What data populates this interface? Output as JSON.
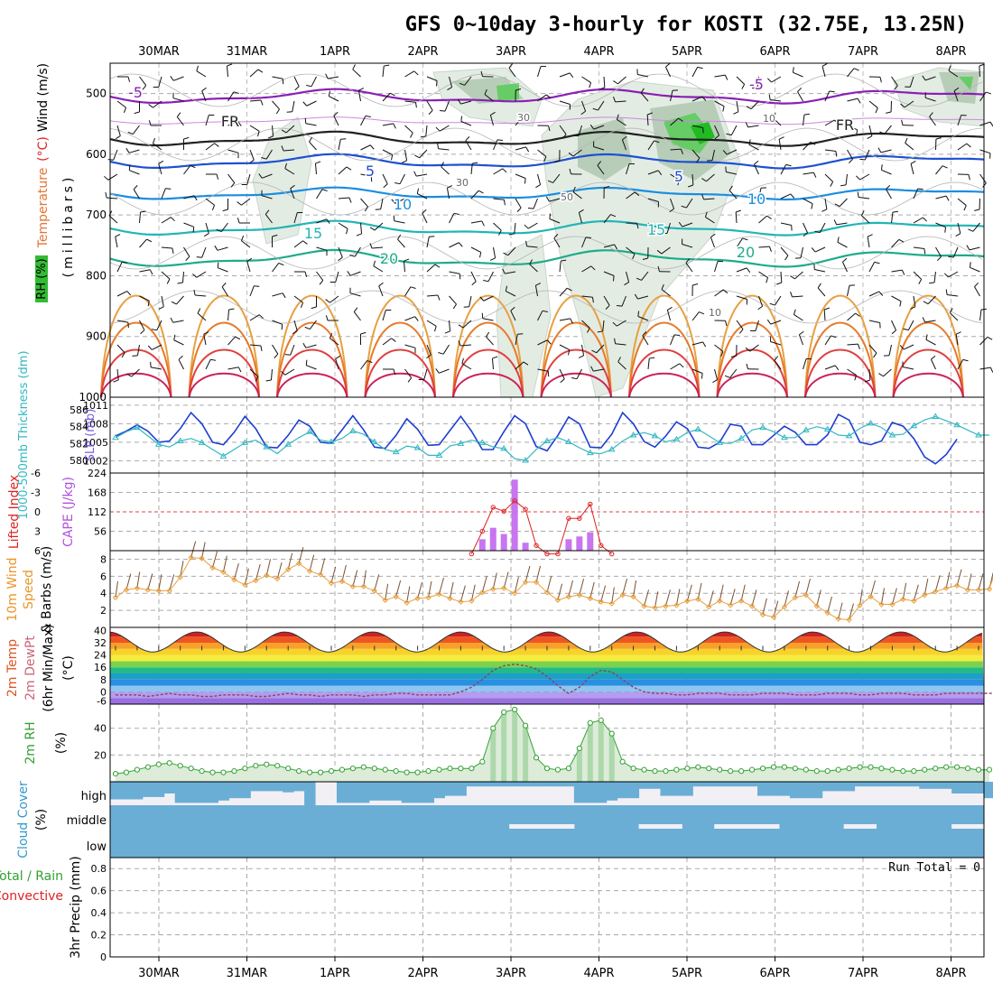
{
  "title": "GFS 0~10day 3-hourly for KOSTI (32.75E, 13.25N)",
  "dates": [
    "30MAR",
    "31MAR",
    "1APR",
    "2APR",
    "3APR",
    "4APR",
    "5APR",
    "6APR",
    "7APR",
    "8APR"
  ],
  "colors": {
    "rh": "#33bb33",
    "temp_cold": "#8a1fb5",
    "temp_mid": "#1e50d0",
    "thickness": "#1e3ed0",
    "slp": "#33b7c2",
    "cape": "#c875f0",
    "lifted": "#dd2222",
    "wind": "#e8a040",
    "cloud": "#6aaed6",
    "rh2m": "#33a033"
  },
  "chart_data": [
    {
      "type": "heatmap",
      "panel": "upper-air",
      "ylabel_parts": [
        "RH (%)",
        "Temperature",
        "(°C)",
        "Wind (m/s)"
      ],
      "ylabel_units": "(millibars)",
      "yticks": [
        500,
        600,
        700,
        800,
        900,
        1000
      ],
      "ylim": [
        1000,
        450
      ],
      "contour_labels": [
        "-5",
        "FR",
        "5",
        "10",
        "15",
        "20",
        "-5",
        "FR",
        "5",
        "10",
        "15",
        "20",
        "30",
        "30",
        "50",
        "10",
        "10"
      ]
    },
    {
      "type": "line",
      "panel": "thickness-slp",
      "ylabel_left": "1000-500mb Thickness (dm)",
      "ylabel_right": "SLP (mb)",
      "left_ticks": [
        580,
        582,
        584,
        586
      ],
      "right_ticks": [
        1002,
        1005,
        1008,
        1011
      ],
      "series": [
        {
          "name": "SLP (mb)",
          "axis": "right",
          "values": [
            1006.0,
            1006.8,
            1007.8,
            1006.8,
            1005.0,
            1005.2,
            1007.2,
            1009.8,
            1008.0,
            1005.0,
            1004.6,
            1006.6,
            1009.2,
            1007.2,
            1004.2,
            1004.1,
            1006.1,
            1008.6,
            1007.6,
            1005.0,
            1004.8,
            1007.0,
            1009.3,
            1007.0,
            1004.2,
            1004.0,
            1006.1,
            1008.8,
            1007.1,
            1004.5,
            1004.6,
            1006.9,
            1009.2,
            1006.8,
            1003.8,
            1003.8,
            1006.7,
            1009.3,
            1008.0,
            1004.3,
            1003.6,
            1006.1,
            1009.1,
            1008.0,
            1004.2,
            1004.1,
            1006.3,
            1009.8,
            1008.0,
            1005.1,
            1004.2,
            1006.0,
            1008.3,
            1007.2,
            1004.2,
            1004.0,
            1005.0,
            1007.9,
            1007.6,
            1004.6,
            1004.6,
            1006.1,
            1007.6,
            1006.6,
            1004.6,
            1004.6,
            1006.2,
            1009.5,
            1008.6,
            1005.0,
            1004.6,
            1005.2,
            1008.2,
            1007.6,
            1005.6,
            1002.6,
            1001.5,
            1003.0,
            1005.5
          ]
        },
        {
          "name": "1000-500mb Thickness (dm)",
          "axis": "left",
          "values": [
            582.7,
            583.4,
            583.9,
            582.9,
            581.9,
            581.6,
            582.3,
            582.6,
            582.1,
            581.3,
            580.5,
            581.3,
            582.1,
            582.4,
            581.6,
            580.8,
            581.9,
            582.7,
            583.4,
            582.4,
            582.2,
            582.6,
            583.5,
            583.1,
            582.2,
            581.3,
            581.0,
            581.7,
            581.5,
            580.6,
            580.6,
            581.7,
            582.0,
            582.4,
            582.1,
            581.6,
            581.4,
            580.2,
            580.0,
            581.3,
            582.3,
            582.7,
            582.2,
            581.5,
            580.9,
            580.8,
            581.3,
            582.3,
            583.0,
            583.3,
            582.9,
            582.2,
            582.5,
            583.3,
            583.7,
            582.9,
            582.1,
            582.0,
            582.6,
            583.6,
            583.9,
            583.4,
            582.7,
            582.7,
            583.6,
            584.0,
            583.7,
            583.0,
            582.9,
            583.8,
            584.4,
            583.9,
            583.0,
            583.1,
            584.1,
            584.8,
            585.2,
            584.7,
            584.2,
            583.6,
            583.0,
            583.0
          ]
        }
      ]
    },
    {
      "type": "bar",
      "panel": "cape-lifted",
      "ylabel_left": "Lifted Index",
      "ylabel_right": "CAPE (J/kg)",
      "left_ticks": [
        -6,
        -3,
        0,
        3,
        6
      ],
      "cape_ticks": [
        56,
        112,
        168,
        224
      ],
      "cape_bars": [
        {
          "step": 34,
          "value": 33
        },
        {
          "step": 35,
          "value": 66
        },
        {
          "step": 36,
          "value": 48
        },
        {
          "step": 37,
          "value": 205
        },
        {
          "step": 38,
          "value": 23
        },
        {
          "step": 42,
          "value": 33
        },
        {
          "step": 43,
          "value": 41
        },
        {
          "step": 44,
          "value": 53
        }
      ],
      "lifted_index": [
        {
          "step": 33,
          "value": 6.5
        },
        {
          "step": 34,
          "value": 3
        },
        {
          "step": 35,
          "value": -0.7
        },
        {
          "step": 36,
          "value": -0.1
        },
        {
          "step": 37,
          "value": -1.7
        },
        {
          "step": 38,
          "value": -0.4
        },
        {
          "step": 39,
          "value": 5.2
        },
        {
          "step": 40,
          "value": 6.8
        },
        {
          "step": 41,
          "value": 6.8
        },
        {
          "step": 42,
          "value": 1.0
        },
        {
          "step": 43,
          "value": 1.0
        },
        {
          "step": 44,
          "value": -1.2
        },
        {
          "step": 45,
          "value": 5.2
        },
        {
          "step": 46,
          "value": 6.5
        }
      ]
    },
    {
      "type": "line",
      "panel": "wind10m",
      "ylabel": "10m Wind Speed & Barbs (m/s)",
      "yticks": [
        2,
        4,
        6,
        8
      ],
      "ylim": [
        0,
        9
      ],
      "values": [
        3.5,
        4.4,
        4.6,
        4.4,
        4.3,
        4.3,
        5.9,
        8.2,
        8.1,
        7.0,
        6.5,
        5.6,
        5.0,
        5.5,
        6.1,
        5.7,
        6.8,
        7.5,
        6.6,
        6.2,
        5.2,
        5.4,
        4.8,
        4.8,
        4.3,
        3.2,
        3.6,
        2.9,
        3.4,
        3.5,
        3.9,
        3.4,
        3.0,
        3.1,
        4.1,
        4.5,
        4.6,
        4.0,
        5.3,
        5.3,
        4.1,
        3.2,
        3.6,
        3.8,
        3.4,
        3.0,
        2.8,
        3.8,
        3.6,
        2.5,
        2.3,
        2.5,
        2.6,
        3.1,
        3.3,
        2.4,
        3.1,
        2.6,
        3.1,
        2.5,
        1.5,
        1.2,
        2.4,
        3.5,
        3.8,
        2.5,
        1.7,
        1.0,
        0.9,
        2.6,
        3.6,
        2.7,
        2.7,
        3.3,
        3.1,
        3.8,
        4.2,
        4.6,
        4.9,
        4.4,
        4.4,
        4.5,
        8.4
      ]
    },
    {
      "type": "area",
      "panel": "temp2m",
      "ylabel": "2m Temp 2m DewPt (6hr Min/Max) (°C)",
      "yticks": [
        -6,
        0,
        8,
        16,
        24,
        32,
        40
      ],
      "tick_labels": [
        "-6",
        "0",
        "8",
        "16",
        "24",
        "32",
        "40"
      ],
      "temp_min": 26,
      "temp_max": 39,
      "dewpoint": [
        -2,
        -2,
        -2,
        -3,
        -2,
        -1,
        -2,
        -2,
        -3,
        -3,
        -2,
        -2,
        -2,
        -3,
        -3,
        -2,
        -1,
        -2,
        -2,
        -3,
        -2,
        -2,
        -2,
        -3,
        -2,
        -2,
        -1,
        -1,
        -2,
        -2,
        -2,
        -2,
        0,
        3,
        8,
        14,
        17,
        18,
        17,
        15,
        10,
        4,
        -1,
        3,
        10,
        14,
        13,
        8,
        3,
        0,
        -1,
        -1,
        -2,
        -2,
        -1,
        -1,
        -1,
        -2,
        -2,
        -2,
        -1,
        -1,
        -1,
        -2,
        -2,
        -2,
        -1,
        -1,
        -1,
        -2,
        -2,
        -1,
        -1,
        -1,
        -2,
        -2,
        -2,
        -1,
        -1,
        -1,
        -1,
        -1,
        -1,
        -1
      ]
    },
    {
      "type": "area",
      "panel": "rh2m",
      "ylabel": "2m RH (%)",
      "yticks": [
        20,
        40
      ],
      "ylim": [
        0,
        58
      ],
      "values": [
        6,
        7,
        9,
        11,
        13,
        14,
        12,
        10,
        8,
        7,
        7,
        8,
        10,
        12,
        13,
        12,
        10,
        8,
        7,
        7,
        8,
        9,
        10,
        11,
        10,
        9,
        8,
        7,
        7,
        8,
        9,
        10,
        10,
        10,
        15,
        40,
        52,
        54,
        42,
        18,
        10,
        9,
        10,
        25,
        44,
        46,
        36,
        15,
        10,
        9,
        8,
        8,
        9,
        10,
        11,
        10,
        9,
        8,
        8,
        9,
        10,
        11,
        11,
        10,
        9,
        8,
        8,
        9,
        10,
        11,
        11,
        10,
        9,
        8,
        8,
        9,
        10,
        11,
        11,
        10,
        9,
        9
      ]
    },
    {
      "type": "bar",
      "panel": "cloud",
      "ylabel": "Cloud Cover (%)",
      "levels": [
        "high",
        "middle",
        "low"
      ],
      "high_fill_fraction": [
        0.75,
        0.75,
        0.75,
        0.65,
        0.65,
        0.5,
        0.9,
        0.9,
        0.9,
        0.9,
        0.8,
        0.7,
        0.7,
        0.4,
        0.4,
        0.4,
        0.45,
        0.4,
        1.0,
        0.0,
        0.0,
        0.9,
        0.9,
        0.9,
        0.8,
        0.8,
        0.8,
        0.9,
        0.9,
        0.9,
        0.7,
        0.6,
        0.6,
        0.2,
        0.2,
        0.2,
        0.2,
        0.2,
        0.2,
        0.2,
        0.2,
        0.2,
        0.2,
        0.9,
        0.9,
        0.9,
        0.8,
        0.7,
        0.7,
        0.3,
        0.3,
        0.6,
        0.6,
        0.6,
        0.2,
        0.2,
        0.2,
        0.2,
        0.2,
        0.2,
        0.6,
        0.6,
        0.6,
        0.7,
        0.7,
        0.7,
        0.4,
        0.4,
        0.4,
        0.2,
        0.2,
        0.2,
        0.2,
        0.2,
        0.2,
        0.3,
        0.3,
        0.3,
        0.5,
        0.5,
        0.5,
        0.7,
        0.9
      ],
      "middle_gap_steps": [
        37,
        38,
        39,
        40,
        41,
        42,
        49,
        50,
        51,
        52,
        56,
        57,
        58,
        59,
        60,
        61,
        68,
        69,
        70,
        78,
        79,
        80
      ]
    },
    {
      "type": "bar",
      "panel": "precip",
      "ylabel_left_parts": [
        "Total / Rain",
        "Convective"
      ],
      "ylabel": "3hr Precip (mm)",
      "yticks": [
        "0",
        "0.2",
        "0.4",
        "0.6",
        "0.8"
      ],
      "run_total": "Run Total = 0",
      "values": []
    }
  ]
}
